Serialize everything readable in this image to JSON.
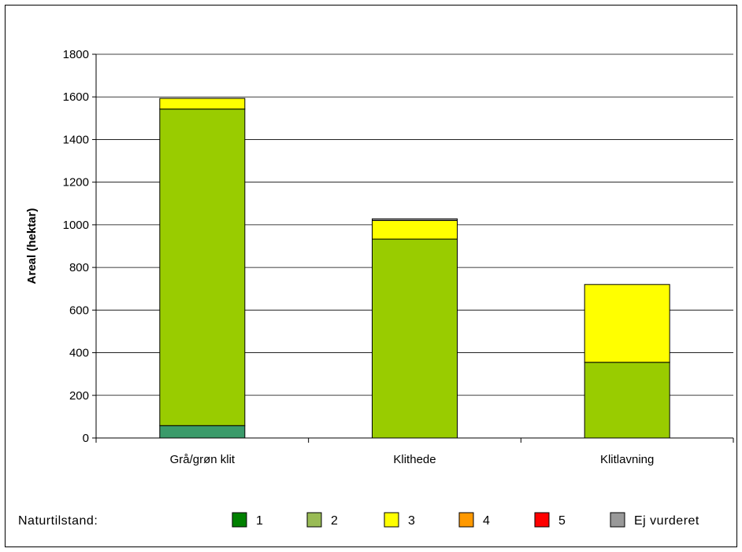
{
  "chart_data": {
    "type": "bar",
    "stacked": true,
    "title": "",
    "xlabel": "",
    "ylabel": "Areal (hektar)",
    "ylim": [
      0,
      1800
    ],
    "yticks": [
      0,
      200,
      400,
      600,
      800,
      1000,
      1200,
      1400,
      1600,
      1800
    ],
    "grid": true,
    "categories": [
      "Grå/grøn klit",
      "Klithede",
      "Klitlavning"
    ],
    "series": [
      {
        "name": "1",
        "color": "#3a9a6a",
        "values": [
          58,
          0,
          0
        ]
      },
      {
        "name": "2",
        "color": "#99cc00",
        "values": [
          1485,
          933,
          355
        ]
      },
      {
        "name": "3",
        "color": "#ffff00",
        "values": [
          50,
          87,
          365
        ]
      },
      {
        "name": "4",
        "color": "#ff9900",
        "values": [
          0,
          0,
          0
        ]
      },
      {
        "name": "5",
        "color": "#ff0000",
        "values": [
          0,
          0,
          0
        ]
      },
      {
        "name": "Ej vurderet",
        "color": "#999999",
        "values": [
          0,
          8,
          0
        ]
      }
    ],
    "legend": {
      "title": "Naturtilstand:",
      "placement": "bottom",
      "swatch_colors": [
        "#008000",
        "#99bb55",
        "#ffff00",
        "#ff9900",
        "#ff0000",
        "#999999"
      ]
    }
  }
}
